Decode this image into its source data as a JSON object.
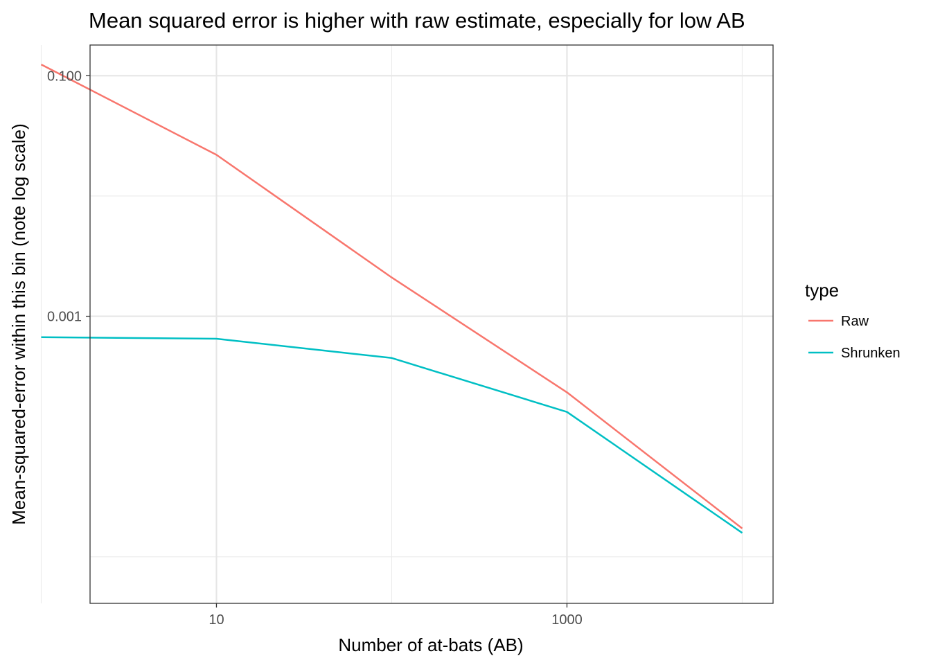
{
  "chart_data": {
    "type": "line",
    "title": "Mean squared error is higher with raw estimate, especially for low AB",
    "xlabel": "Number of at-bats (AB)",
    "ylabel": "Mean-squared-error within this bin (note log scale)",
    "x_scale": "log10",
    "y_scale": "log10",
    "xlim": [
      1.9,
      15000
    ],
    "ylim": [
      4.1e-06,
      0.18
    ],
    "x_ticks": [
      {
        "value": 10,
        "label": "10"
      },
      {
        "value": 1000,
        "label": "1000"
      }
    ],
    "x_minor_ticks": [
      1,
      100,
      10000
    ],
    "y_ticks": [
      {
        "value": 0.001,
        "label": "0.001"
      },
      {
        "value": 0.1,
        "label": "0.100"
      }
    ],
    "y_minor_ticks": [
      1e-05,
      0.01
    ],
    "grid": true,
    "legend": {
      "title": "type",
      "position": "right"
    },
    "series": [
      {
        "name": "Raw",
        "color": "#F8766D",
        "x": [
          1,
          10,
          100,
          1000,
          10000
        ],
        "y": [
          0.124,
          0.022,
          0.0021,
          0.000233,
          1.72e-05
        ]
      },
      {
        "name": "Shrunken",
        "color": "#00BFC4",
        "x": [
          1,
          10,
          100,
          1000,
          10000
        ],
        "y": [
          0.00067,
          0.00065,
          0.00045,
          0.00016,
          1.58e-05
        ]
      }
    ]
  }
}
